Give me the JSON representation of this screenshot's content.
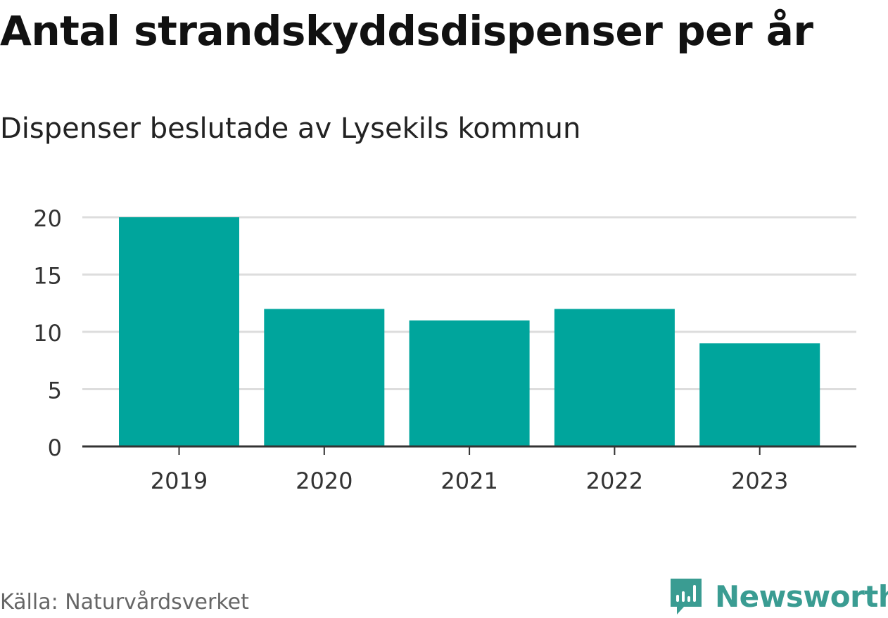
{
  "header": {
    "title": "Antal strandskyddsdispenser per år",
    "subtitle": "Dispenser beslutade av Lysekils kommun"
  },
  "footer": {
    "source": "Källa: Naturvårdsverket",
    "brand": "Newsworthy",
    "brand_icon": "newsworthy-logo-icon"
  },
  "colors": {
    "bar": "#00a59c",
    "grid": "#dddddd",
    "axis": "#333333",
    "brand": "#3a9c92"
  },
  "chart_data": {
    "type": "bar",
    "title": "Antal strandskyddsdispenser per år",
    "subtitle": "Dispenser beslutade av Lysekils kommun",
    "categories": [
      "2019",
      "2020",
      "2021",
      "2022",
      "2023"
    ],
    "values": [
      20,
      12,
      11,
      12,
      9
    ],
    "xlabel": "",
    "ylabel": "",
    "ylim": [
      0,
      20
    ],
    "yticks": [
      0,
      5,
      10,
      15,
      20
    ],
    "grid": true
  }
}
